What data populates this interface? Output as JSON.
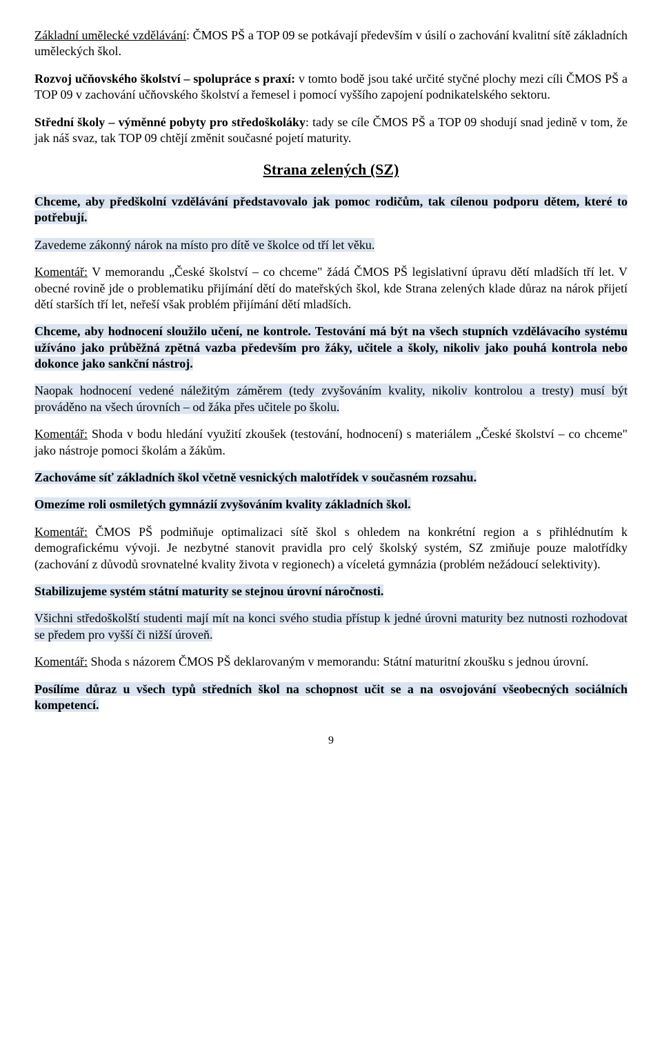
{
  "p1": {
    "r1": "Základní umělecké vzdělávání",
    "r2": ":     ČMOS PŠ a TOP 09 se potkávají především v úsilí o zachování kvalitní sítě základních uměleckých škol."
  },
  "p2": {
    "r1": "Rozvoj učňovského školství – spolupráce s praxí:",
    "r2": " v tomto bodě jsou také určité styčné plochy mezi cíli ČMOS PŠ a TOP 09 v zachování učňovského školství a řemesel i pomocí vyššího zapojení podnikatelského sektoru."
  },
  "p3": {
    "r1": "Střední školy – výměnné pobyty pro středoškoláky",
    "r2": ": tady se cíle ČMOS PŠ a TOP 09 shodují snad jedině v tom, že jak náš svaz, tak TOP 09 chtějí změnit současné pojetí maturity."
  },
  "title": "Strana zelených (SZ)",
  "h1": "Chceme, aby předškolní vzdělávání představovalo jak pomoc rodičům, tak cílenou podporu dětem, které to potřebují.",
  "h2": "Zavedeme zákonný nárok na místo pro dítě ve školce od tří let věku.",
  "p4": {
    "r1": "Komentář:",
    "r2": " V memorandu „České školství – co chceme\" žádá ČMOS PŠ legislativní úpravu dětí mladších tří let. V obecné rovině jde o problematiku přijímání dětí do mateřských škol, kde Strana zelených klade důraz na nárok přijetí dětí starších tří let, neřeší však problém přijímání dětí mladších."
  },
  "h3": "Chceme, aby hodnocení sloužilo učení, ne kontrole. Testování má být na všech stupních vzdělávacího systému užíváno jako průběžná zpětná vazba především pro žáky, učitele a školy, nikoliv jako pouhá kontrola nebo dokonce jako sankční nástroj.",
  "h4": "Naopak hodnocení vedené náležitým záměrem (tedy zvyšováním kvality, nikoliv kontrolou a tresty) musí být prováděno na všech úrovních – od žáka přes učitele po školu.",
  "p5": {
    "r1": "Komentář:",
    "r2": " Shoda v bodu hledání využití zkoušek (testování, hodnocení) s materiálem „České školství – co chceme\" jako nástroje pomoci školám a žákům."
  },
  "h5": "Zachováme síť základních škol včetně vesnických malotřídek v současném rozsahu.",
  "h6": "Omezíme roli osmiletých gymnázií zvyšováním kvality základních škol.",
  "p6": {
    "r1": "Komentář:",
    "r2": " ČMOS PŠ podmiňuje optimalizaci sítě škol s ohledem na konkrétní region a s přihlédnutím k demografickému vývoji. Je nezbytné stanovit pravidla pro celý školský systém, SZ zmiňuje pouze malotřídky (zachování z důvodů srovnatelné kvality života v regionech) a víceletá gymnázia (problém nežádoucí selektivity)."
  },
  "h7": "Stabilizujeme systém státní maturity se stejnou úrovní náročnosti.",
  "h8": "Všichni středoškolští studenti mají mít na konci svého studia přístup k jedné úrovni maturity bez nutnosti rozhodovat se předem pro vyšší či nižší úroveň.",
  "p7": {
    "r1": "Komentář:",
    "r2": "  Shoda s názorem ČMOS PŠ deklarovaným v memorandu: Státní maturitní zkoušku s jednou úrovní."
  },
  "h9": "Posílíme důraz u všech typů středních škol na schopnost učit se a na osvojování všeobecných sociálních kompetencí.",
  "page": "9"
}
